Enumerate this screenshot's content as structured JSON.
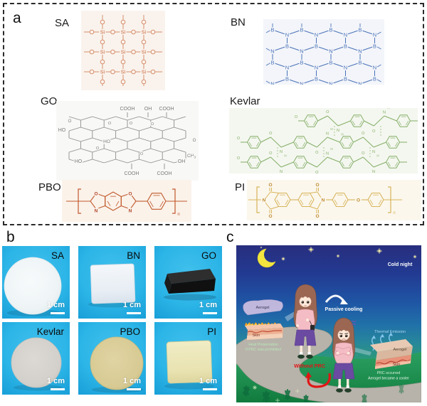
{
  "panels": {
    "a": "a",
    "b": "b",
    "c": "c"
  },
  "structures": {
    "sa": {
      "label": "SA",
      "si": "Si",
      "o": "O"
    },
    "bn": {
      "label": "BN",
      "b": "B",
      "n": "N"
    },
    "go": {
      "label": "GO",
      "top_groups": [
        "COOH",
        "OH",
        "COOH"
      ],
      "left_o": "O",
      "left_group": "HO",
      "mid_oh": "HO",
      "right_o": "O",
      "right_group": "CH3",
      "bottom_left": "HO",
      "bottom_groups": [
        "COOH",
        "COOH"
      ],
      "bottom_right": "OH",
      "epoxide": "O"
    },
    "kevlar": {
      "label": "Kevlar",
      "n": "N",
      "h": "H",
      "o": "O"
    },
    "pbo": {
      "label": "PBO",
      "o": "O",
      "n": "N",
      "sub": "n"
    },
    "pi": {
      "label": "PI",
      "o": "O",
      "n": "N",
      "sub": "n"
    }
  },
  "samples": {
    "scale_label": "1 cm",
    "items": [
      {
        "name": "SA"
      },
      {
        "name": "BN"
      },
      {
        "name": "GO"
      },
      {
        "name": "Kevlar"
      },
      {
        "name": "PBO"
      },
      {
        "name": "PI"
      }
    ]
  },
  "scene": {
    "cold_night": "Cold night",
    "passive_cooling": "Passive cooling",
    "without_prc": "Without PRC",
    "left_inset": {
      "aerogel": "Aerogel",
      "skin": "Skin",
      "line1": "Heat Preservation",
      "line2": "If PRC was prohibited"
    },
    "right_inset": {
      "thermal_emission": "Thermal Emission",
      "aerogel": "Aerogel",
      "skin": "Skin",
      "line1": "PRC occurred",
      "line2": "Aerogel became a cooler"
    }
  },
  "colors": {
    "sa_structure": "#d78f6d",
    "bn_structure": "#4a72b8",
    "go_structure": "#8d8d8d",
    "go_text": "#7c7c7c",
    "kevlar_structure": "#84ae69",
    "pbo_structure": "#c05a2c",
    "pbo_letter": "#b04326",
    "pi_structure": "#d8b45a",
    "pi_letter": "#c08a30",
    "tile_background": "#2cb5e7",
    "scale_bar": "#ffffff",
    "sky_top": "#282e7e",
    "grass": "#1d9150",
    "road": "#b7b3aa",
    "moon": "#f2e53e",
    "without_prc_red": "#e01616",
    "sweater_pink": "#f4bcc4",
    "pants_purple": "#6b4aa2",
    "hair_brown": "#9b6753"
  }
}
